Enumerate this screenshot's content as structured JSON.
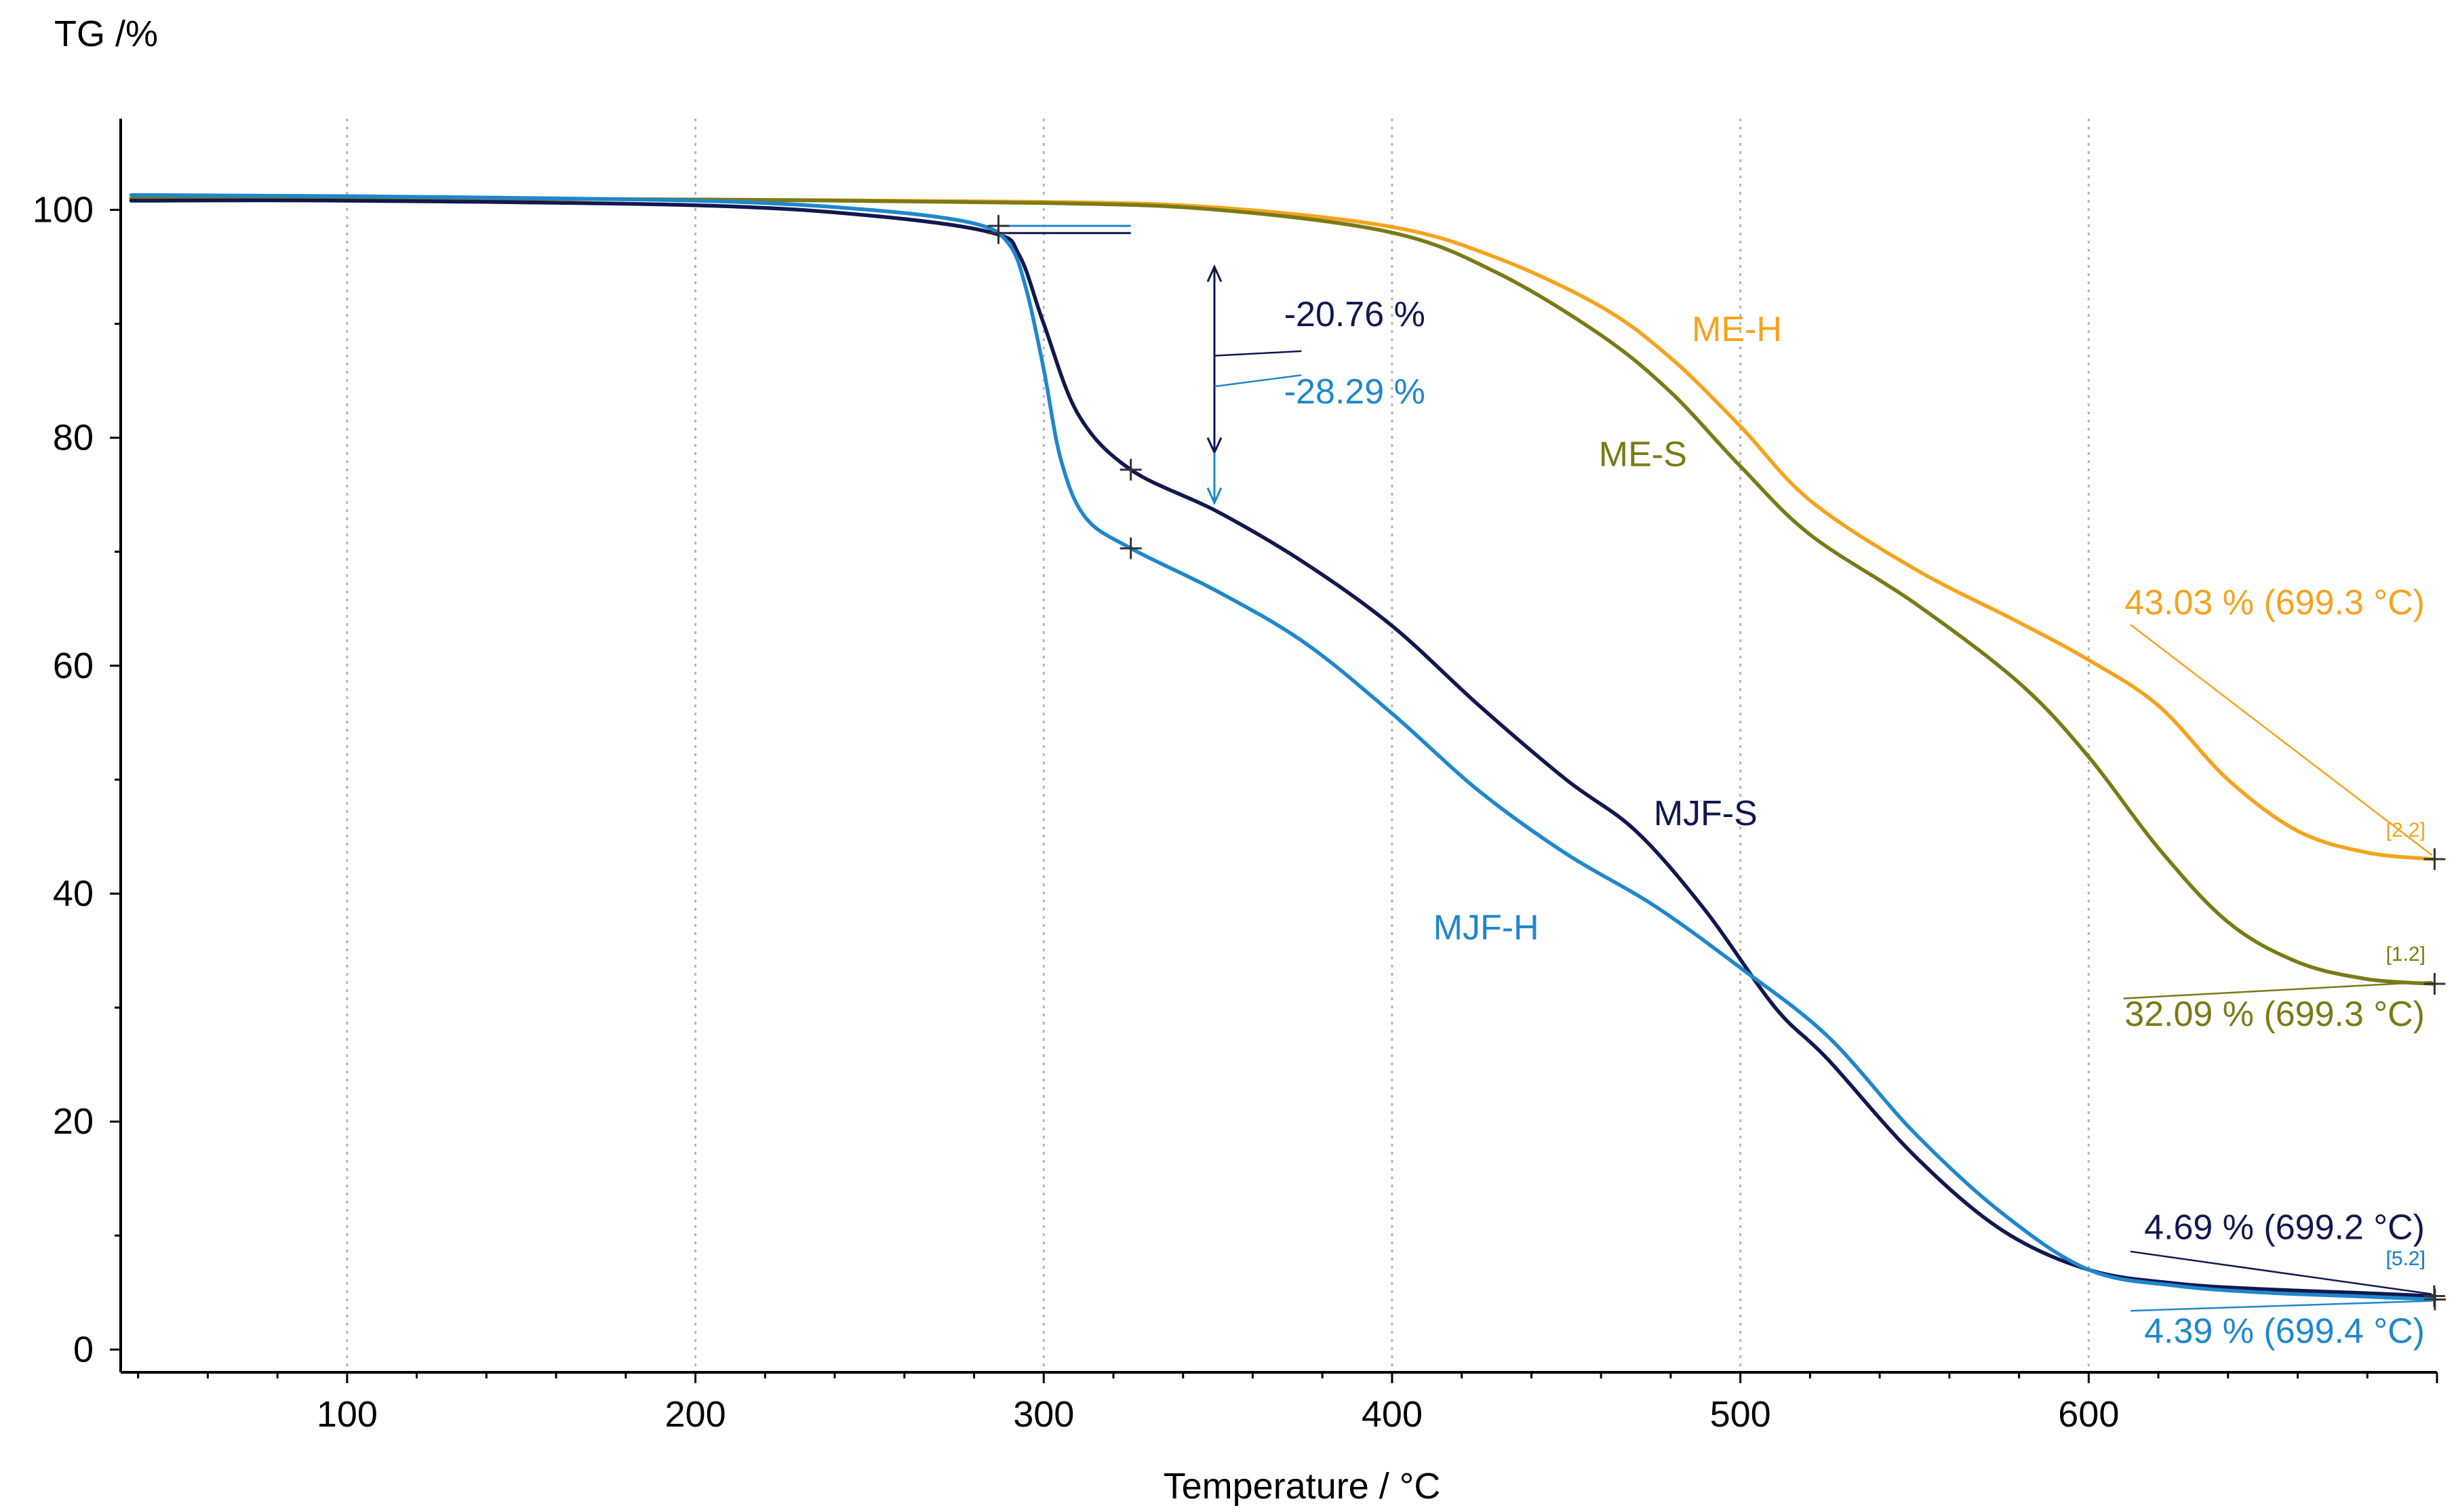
{
  "chart_data": {
    "type": "line",
    "title": "",
    "ylabel": "TG /%",
    "xlabel": "Temperature  / °C",
    "xlim": [
      35,
      700
    ],
    "ylim": [
      -2,
      108
    ],
    "grid": "vertical dotted lines at major x ticks",
    "x_ticks": [
      100,
      200,
      300,
      400,
      500,
      600
    ],
    "y_ticks": [
      0,
      20,
      40,
      60,
      80,
      100
    ],
    "legend": "none (series labeled directly on the plot)",
    "series": [
      {
        "name": "ME-H",
        "color": "#F5A31C",
        "x": [
          38,
          100,
          200,
          300,
          350,
          400,
          430,
          460,
          480,
          500,
          520,
          550,
          580,
          600,
          620,
          640,
          660,
          680,
          699.3
        ],
        "y": [
          101.0,
          101.0,
          100.9,
          100.7,
          100.2,
          98.5,
          95.8,
          91.5,
          87.0,
          81.0,
          74.5,
          68.5,
          63.8,
          60.5,
          56.5,
          50.0,
          45.5,
          43.6,
          43.03
        ]
      },
      {
        "name": "ME-S",
        "color": "#7A7A16",
        "x": [
          38,
          100,
          200,
          300,
          350,
          400,
          430,
          460,
          480,
          500,
          520,
          550,
          580,
          600,
          620,
          640,
          660,
          680,
          699.3
        ],
        "y": [
          101.0,
          101.0,
          100.9,
          100.6,
          100.0,
          98.0,
          94.5,
          89.0,
          84.0,
          77.5,
          71.5,
          65.5,
          58.5,
          52.0,
          44.0,
          37.5,
          34.0,
          32.5,
          32.09
        ]
      },
      {
        "name": "MJF-S",
        "color": "#11174F",
        "x": [
          38,
          100,
          200,
          250,
          285,
          293,
          300,
          310,
          325,
          350,
          375,
          400,
          425,
          450,
          470,
          490,
          510,
          525,
          550,
          575,
          600,
          625,
          650,
          675,
          699.2
        ],
        "y": [
          100.8,
          100.8,
          100.4,
          99.5,
          98.0,
          96.0,
          90.0,
          82.0,
          77.2,
          73.5,
          69.0,
          63.5,
          56.5,
          50.0,
          45.5,
          38.5,
          30.0,
          25.5,
          17.0,
          10.5,
          7.0,
          5.8,
          5.3,
          5.0,
          4.69
        ]
      },
      {
        "name": "MJF-H",
        "color": "#1F87CB",
        "x": [
          38,
          100,
          200,
          250,
          280,
          290,
          295,
          300,
          305,
          312,
          325,
          350,
          375,
          400,
          425,
          450,
          475,
          500,
          525,
          550,
          575,
          600,
          625,
          650,
          675,
          699.4
        ],
        "y": [
          101.3,
          101.2,
          100.8,
          100.0,
          98.8,
          97.0,
          93.0,
          86.0,
          78.0,
          73.0,
          70.3,
          66.5,
          62.0,
          55.8,
          49.0,
          43.5,
          39.0,
          33.5,
          27.5,
          19.0,
          12.0,
          7.0,
          5.6,
          5.0,
          4.7,
          4.39
        ]
      }
    ],
    "step_annotations": [
      {
        "label": "-20.76 %",
        "color": "#11174F",
        "x_start": 287,
        "x_end": 325,
        "y_start": 97.96,
        "y_end": 77.2
      },
      {
        "label": "-28.29 %",
        "color": "#1F87CB",
        "x_start": 287,
        "x_end": 325,
        "y_start": 98.59,
        "y_end": 70.3
      }
    ],
    "end_annotations": [
      {
        "label": "43.03 % (699.3 °C)",
        "marker": "[2.2]",
        "color": "#F5A31C",
        "x": 699.3,
        "y": 43.03
      },
      {
        "label": "32.09 % (699.3 °C)",
        "marker": "[1.2]",
        "color": "#7A7A16",
        "x": 699.3,
        "y": 32.09
      },
      {
        "label": "4.69 % (699.2 °C)",
        "marker": "[5.2]",
        "color": "#11174F",
        "x": 699.2,
        "y": 4.69
      },
      {
        "label": "4.39 % (699.4 °C)",
        "marker": "[5.2]",
        "color": "#1F87CB",
        "x": 699.4,
        "y": 4.39
      }
    ],
    "curve_labels": [
      {
        "text": "ME-H",
        "color": "#F5A31C",
        "x": 499,
        "y": 88.5
      },
      {
        "text": "ME-S",
        "color": "#7A7A16",
        "x": 472,
        "y": 77.5
      },
      {
        "text": "MJF-S",
        "color": "#11174F",
        "x": 490,
        "y": 46
      },
      {
        "text": "MJF-H",
        "color": "#1F87CB",
        "x": 427,
        "y": 36
      }
    ]
  }
}
